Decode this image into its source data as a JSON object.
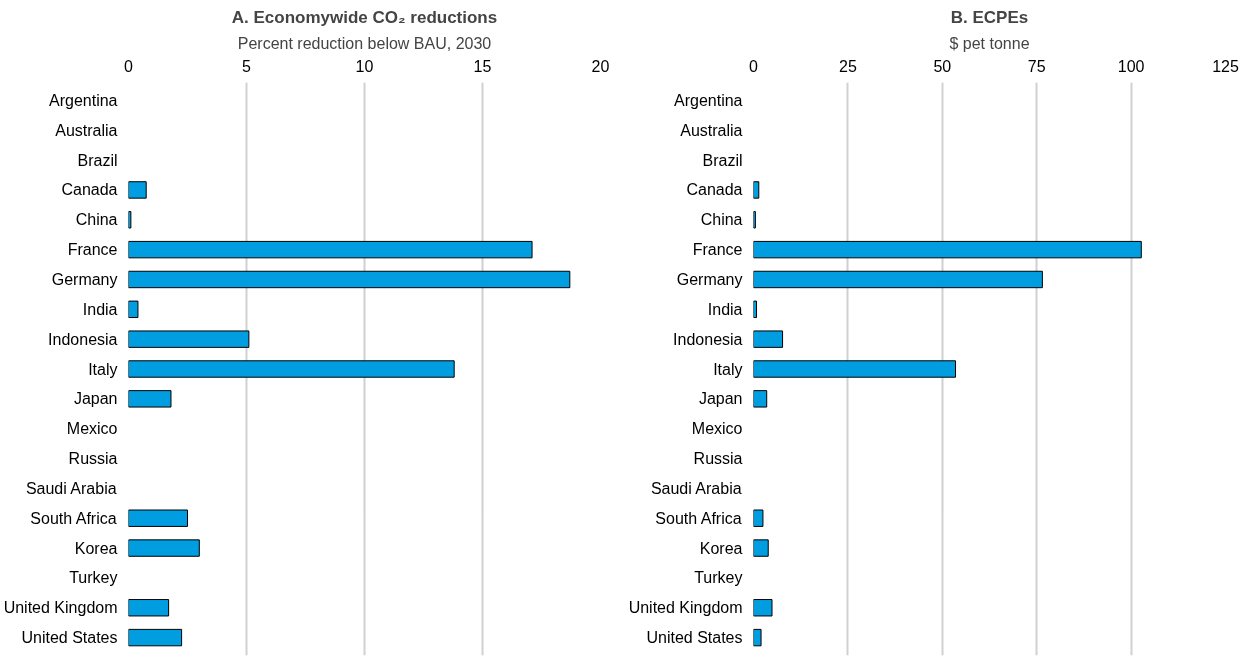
{
  "chart_data": [
    {
      "type": "bar",
      "orientation": "horizontal",
      "title": "A. Economywide CO₂ reductions",
      "xlabel": "Percent reduction below BAU, 2030",
      "categories": [
        "Argentina",
        "Australia",
        "Brazil",
        "Canada",
        "China",
        "France",
        "Germany",
        "India",
        "Indonesia",
        "Italy",
        "Japan",
        "Mexico",
        "Russia",
        "Saudi Arabia",
        "South Africa",
        "Korea",
        "Turkey",
        "United Kingdom",
        "United States"
      ],
      "values": [
        null,
        null,
        null,
        0.75,
        0.1,
        17.1,
        18.7,
        0.4,
        5.1,
        13.8,
        1.8,
        null,
        null,
        null,
        2.5,
        3.0,
        null,
        1.7,
        2.25
      ],
      "color": "#009ee0",
      "xlim": [
        0,
        20
      ],
      "xticks": [
        0,
        5,
        10,
        15,
        20
      ],
      "grid": "x"
    },
    {
      "type": "bar",
      "orientation": "horizontal",
      "title": "B. ECPEs",
      "xlabel": "$ pet tonne",
      "categories": [
        "Argentina",
        "Australia",
        "Brazil",
        "Canada",
        "China",
        "France",
        "Germany",
        "India",
        "Indonesia",
        "Italy",
        "Japan",
        "Mexico",
        "Russia",
        "Saudi Arabia",
        "South Africa",
        "Korea",
        "Turkey",
        "United Kingdom",
        "United States"
      ],
      "values": [
        null,
        null,
        null,
        1.4,
        0.5,
        102.7,
        76.5,
        0.8,
        7.7,
        53.5,
        3.5,
        null,
        null,
        null,
        2.5,
        3.9,
        null,
        4.9,
        2.0
      ],
      "color": "#009ee0",
      "xlim": [
        0,
        125
      ],
      "xticks": [
        0,
        25,
        50,
        75,
        100,
        125
      ],
      "grid": "x"
    }
  ]
}
